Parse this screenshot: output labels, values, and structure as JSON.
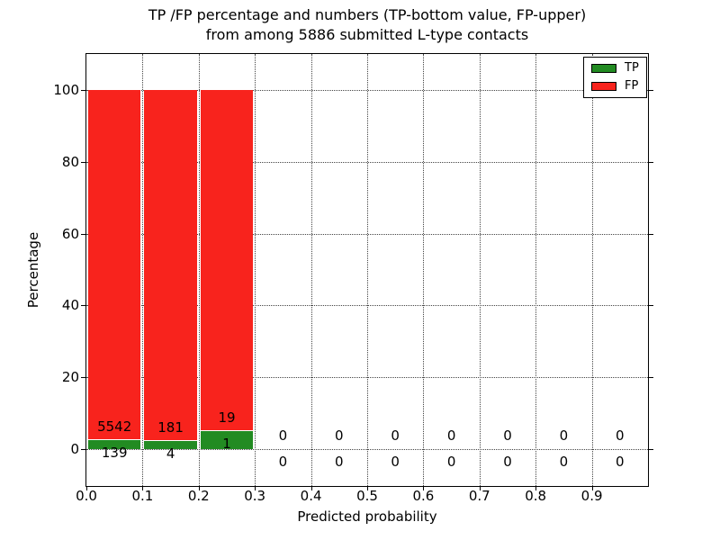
{
  "title": {
    "line1": "TP /FP percentage and numbers (TP-bottom value, FP-upper)",
    "line2": "from among 5886 submitted L-type contacts"
  },
  "chart_data": {
    "type": "bar",
    "stacked": true,
    "title": "TP /FP percentage and numbers (TP-bottom value, FP-upper)\nfrom among 5886 submitted L-type contacts",
    "xlabel": "Predicted probability",
    "ylabel": "Percentage",
    "total_submitted_contacts": 5886,
    "xlim": [
      0.0,
      1.0
    ],
    "ylim": [
      -10.3,
      110
    ],
    "grid": true,
    "bin_width": 0.1,
    "bin_starts": [
      0.0,
      0.1,
      0.2,
      0.3,
      0.4,
      0.5,
      0.6,
      0.7,
      0.8,
      0.9
    ],
    "x_ticks": [
      "0.0",
      "0.1",
      "0.2",
      "0.3",
      "0.4",
      "0.5",
      "0.6",
      "0.7",
      "0.8",
      "0.9"
    ],
    "y_ticks": [
      0,
      20,
      40,
      60,
      80,
      100
    ],
    "series": [
      {
        "name": "TP",
        "color": "#228b22",
        "counts": [
          139,
          4,
          1,
          0,
          0,
          0,
          0,
          0,
          0,
          0
        ],
        "pct": [
          2.45,
          2.16,
          5.0,
          0,
          0,
          0,
          0,
          0,
          0,
          0
        ]
      },
      {
        "name": "FP",
        "color": "#f8231d",
        "counts": [
          5542,
          181,
          19,
          0,
          0,
          0,
          0,
          0,
          0,
          0
        ],
        "pct": [
          97.55,
          97.84,
          95.0,
          0,
          0,
          0,
          0,
          0,
          0,
          0
        ]
      }
    ],
    "legend": {
      "position": "upper right",
      "entries": [
        "TP",
        "FP"
      ]
    }
  }
}
